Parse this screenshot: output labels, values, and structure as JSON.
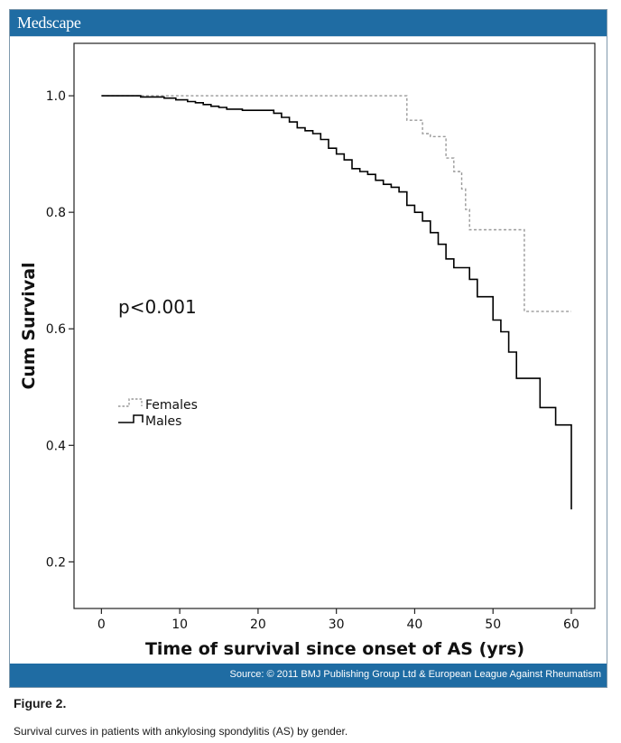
{
  "header": {
    "brand": "Medscape"
  },
  "footer": {
    "source": "Source: © 2011 BMJ Publishing Group Ltd & European League Against Rheumatism"
  },
  "figure": {
    "title": "Figure 2.",
    "caption": "Survival curves in patients with ankylosing spondylitis (AS) by gender."
  },
  "colors": {
    "brand_blue": "#1f6ca3",
    "males": "#000000",
    "females": "#999999"
  },
  "chart_data": {
    "type": "line",
    "step": true,
    "xlabel": "Time of survival since onset of AS (yrs)",
    "ylabel": "Cum Survival",
    "xlim": [
      -3.5,
      63
    ],
    "ylim": [
      0.12,
      1.09
    ],
    "xticks": [
      0,
      10,
      20,
      30,
      40,
      50,
      60
    ],
    "yticks": [
      0.2,
      0.4,
      0.6,
      0.8,
      1.0
    ],
    "ytick_labels": [
      "0.2",
      "0.4",
      "0.6",
      "0.8",
      "1.0"
    ],
    "grid": false,
    "legend_position": "middle-left",
    "annotation": "p<0.001",
    "series": [
      {
        "name": "Females",
        "style": "dotted",
        "x": [
          0,
          39,
          39,
          41,
          41,
          42,
          42,
          44,
          44,
          45,
          45,
          46,
          46,
          46.5,
          46.5,
          47,
          47,
          54,
          54,
          60
        ],
        "y": [
          1.0,
          1.0,
          0.958,
          0.958,
          0.935,
          0.935,
          0.93,
          0.93,
          0.893,
          0.893,
          0.87,
          0.87,
          0.84,
          0.84,
          0.805,
          0.805,
          0.77,
          0.77,
          0.63,
          0.63
        ]
      },
      {
        "name": "Males",
        "style": "solid",
        "x": [
          0,
          5,
          5,
          8,
          8,
          9.5,
          9.5,
          11,
          11,
          12,
          12,
          13,
          13,
          14,
          14,
          15,
          15,
          16,
          16,
          18,
          18,
          22,
          22,
          23,
          23,
          24,
          24,
          25,
          25,
          26,
          26,
          27,
          27,
          28,
          28,
          29,
          29,
          30,
          30,
          31,
          31,
          32,
          32,
          33,
          33,
          34,
          34,
          35,
          35,
          36,
          36,
          37,
          37,
          38,
          38,
          39,
          39,
          40,
          40,
          41,
          41,
          42,
          42,
          43,
          43,
          44,
          44,
          45,
          45,
          47,
          47,
          48,
          48,
          50,
          50,
          51,
          51,
          52,
          52,
          53,
          53,
          56,
          56,
          58,
          58,
          60,
          60
        ],
        "y": [
          1.0,
          1.0,
          0.998,
          0.998,
          0.996,
          0.996,
          0.993,
          0.993,
          0.99,
          0.99,
          0.988,
          0.988,
          0.985,
          0.985,
          0.982,
          0.982,
          0.98,
          0.98,
          0.977,
          0.977,
          0.975,
          0.975,
          0.97,
          0.97,
          0.963,
          0.963,
          0.955,
          0.955,
          0.945,
          0.945,
          0.94,
          0.94,
          0.935,
          0.935,
          0.925,
          0.925,
          0.91,
          0.91,
          0.9,
          0.9,
          0.89,
          0.89,
          0.875,
          0.875,
          0.87,
          0.87,
          0.865,
          0.865,
          0.855,
          0.855,
          0.848,
          0.848,
          0.843,
          0.843,
          0.835,
          0.835,
          0.812,
          0.812,
          0.8,
          0.8,
          0.785,
          0.785,
          0.765,
          0.765,
          0.745,
          0.745,
          0.72,
          0.72,
          0.705,
          0.705,
          0.685,
          0.685,
          0.655,
          0.655,
          0.615,
          0.615,
          0.595,
          0.595,
          0.56,
          0.56,
          0.515,
          0.515,
          0.465,
          0.465,
          0.435,
          0.435,
          0.29
        ]
      }
    ]
  }
}
